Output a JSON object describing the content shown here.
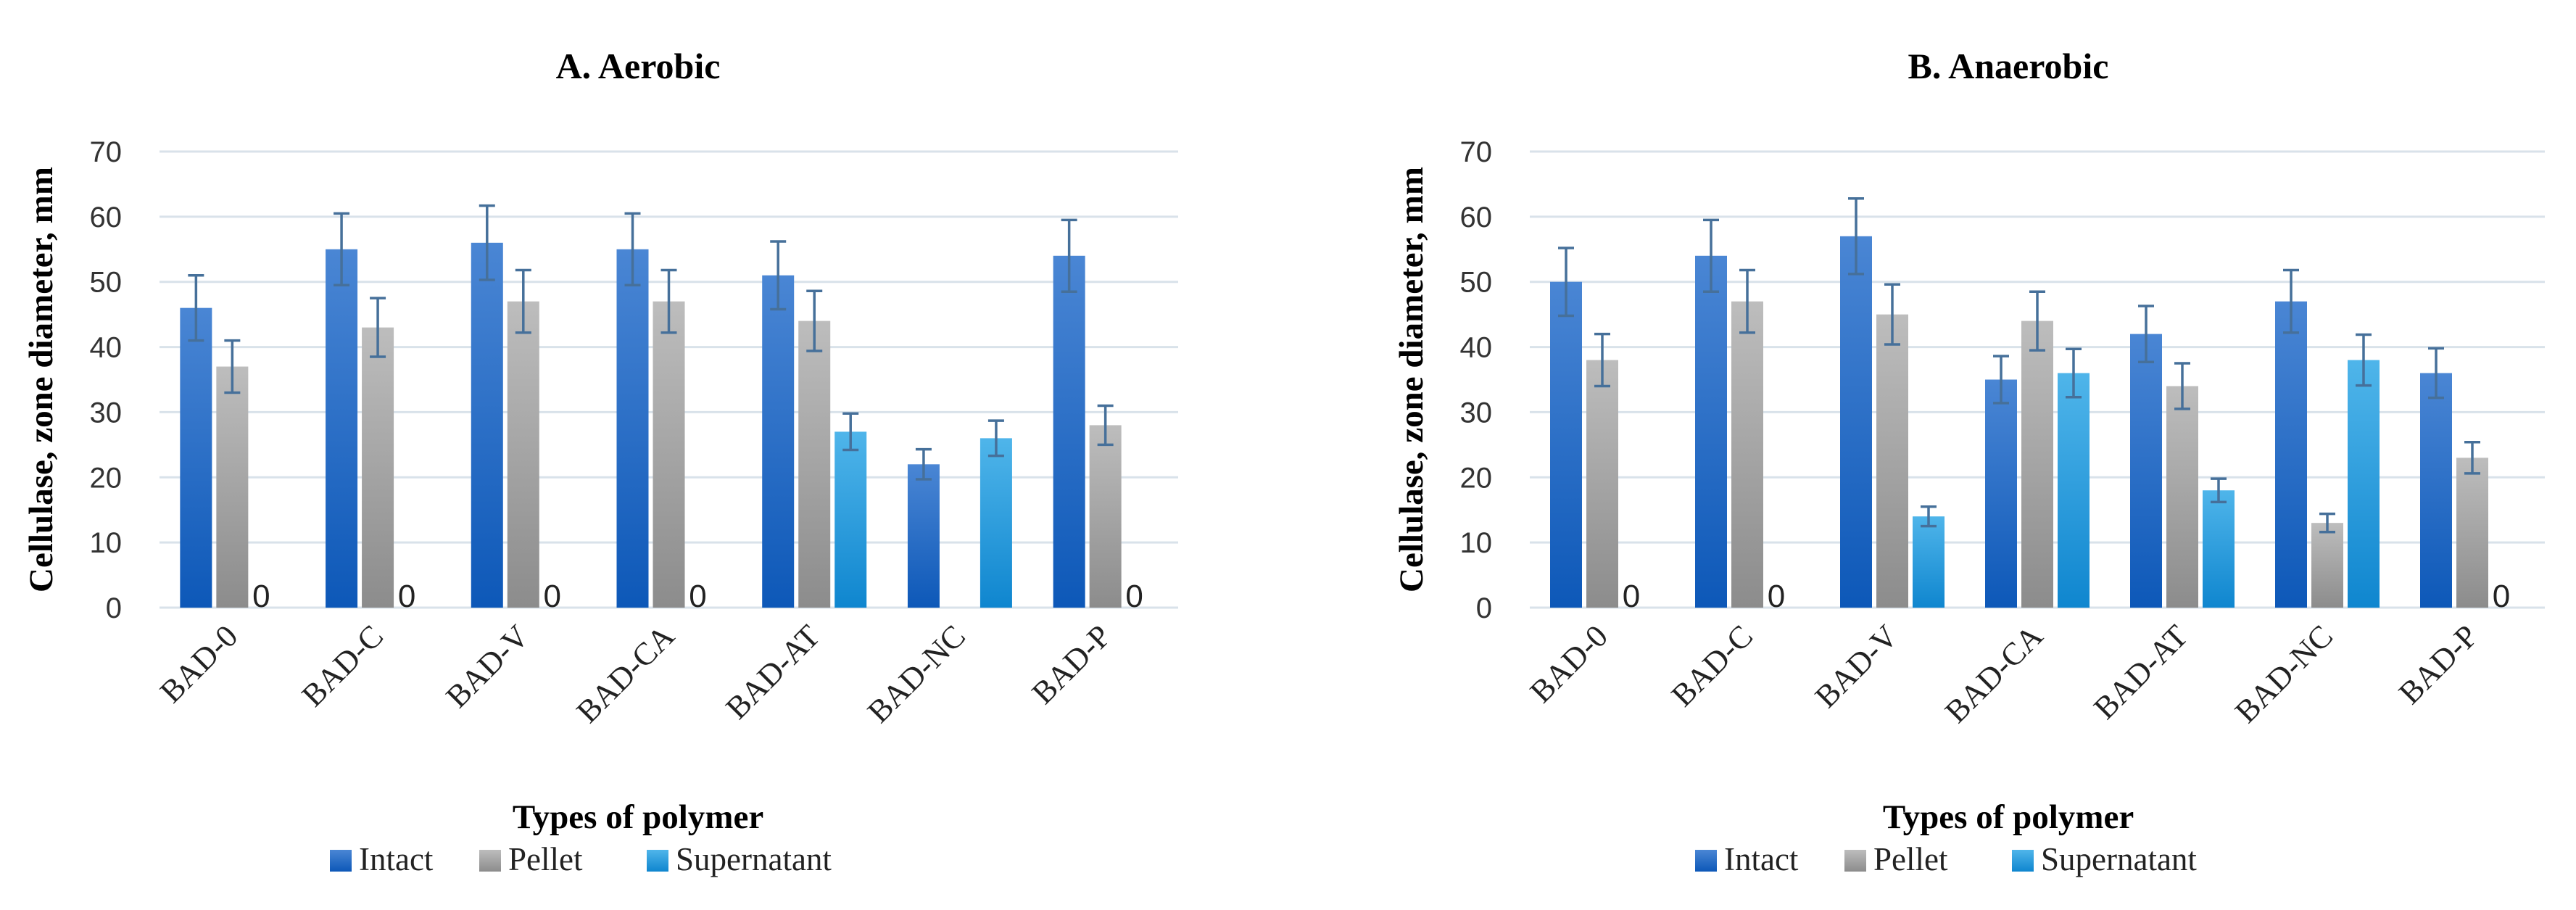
{
  "chart_data": [
    {
      "type": "bar",
      "title": "A. Aerobic",
      "xlabel": "Types of polymer",
      "ylabel": "Cellulase, zone diameter, mm",
      "ylim": [
        0,
        70
      ],
      "yticks": [
        0,
        10,
        20,
        30,
        40,
        50,
        60,
        70
      ],
      "grid": true,
      "legend_position": "bottom",
      "categories": [
        "BAD-0",
        "BAD-C",
        "BAD-V",
        "BAD-CA",
        "BAD-AT",
        "BAD-NC",
        "BAD-P"
      ],
      "series": [
        {
          "name": "Intact",
          "color": "#2f6fc4",
          "values": [
            46,
            55,
            56,
            55,
            51,
            22,
            54
          ],
          "errors": [
            5,
            5.5,
            5.7,
            5.5,
            5.2,
            2.3,
            5.5
          ]
        },
        {
          "name": "Pellet",
          "color": "#a6a6a6",
          "values": [
            37,
            43,
            47,
            47,
            44,
            0,
            28
          ],
          "errors": [
            4,
            4.5,
            4.8,
            4.8,
            4.6,
            null,
            3
          ]
        },
        {
          "name": "Supernatant",
          "color": "#2fa0df",
          "values": [
            0,
            0,
            0,
            0,
            27,
            26,
            0
          ],
          "errors": [
            null,
            null,
            null,
            null,
            2.8,
            2.7,
            null
          ]
        }
      ]
    },
    {
      "type": "bar",
      "title": "B. Anaerobic",
      "xlabel": "Types of polymer",
      "ylabel": "Cellulase, zone diameter, mm",
      "ylim": [
        0,
        70
      ],
      "yticks": [
        0,
        10,
        20,
        30,
        40,
        50,
        60,
        70
      ],
      "grid": true,
      "legend_position": "bottom",
      "categories": [
        "BAD-0",
        "BAD-C",
        "BAD-V",
        "BAD-CA",
        "BAD-AT",
        "BAD-NC",
        "BAD-P"
      ],
      "series": [
        {
          "name": "Intact",
          "color": "#2f6fc4",
          "values": [
            50,
            54,
            57,
            35,
            42,
            47,
            36
          ],
          "errors": [
            5.2,
            5.5,
            5.8,
            3.6,
            4.3,
            4.8,
            3.8
          ]
        },
        {
          "name": "Pellet",
          "color": "#a6a6a6",
          "values": [
            38,
            47,
            45,
            44,
            34,
            13,
            23
          ],
          "errors": [
            4,
            4.8,
            4.6,
            4.5,
            3.5,
            1.4,
            2.4
          ]
        },
        {
          "name": "Supernatant",
          "color": "#2fa0df",
          "values": [
            0,
            0,
            14,
            36,
            18,
            38,
            0
          ],
          "errors": [
            null,
            null,
            1.5,
            3.7,
            1.8,
            3.9,
            null
          ]
        }
      ]
    }
  ]
}
